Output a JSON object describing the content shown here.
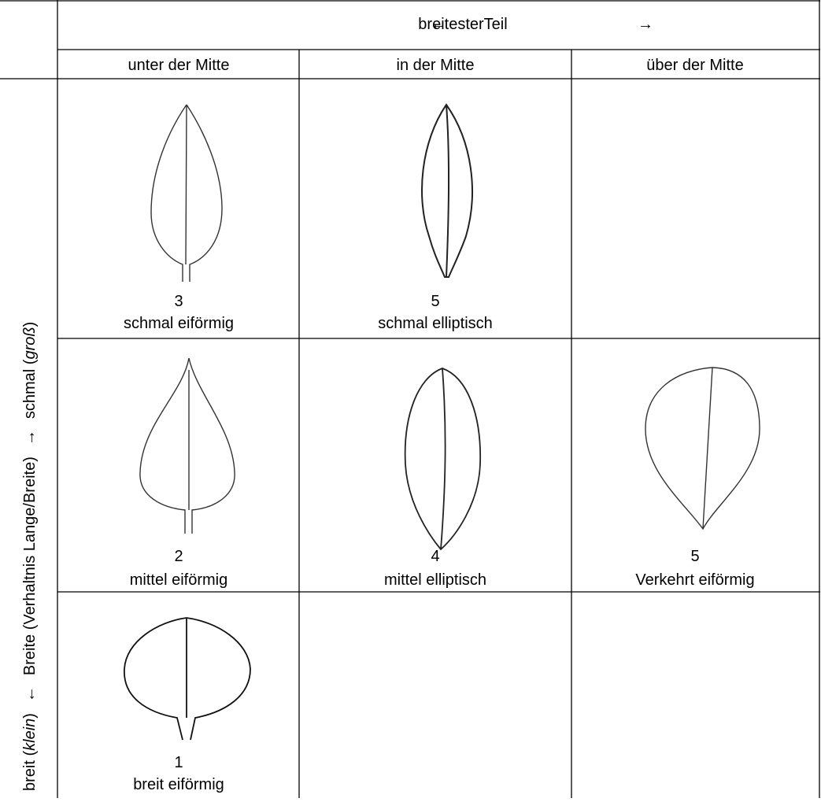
{
  "header": {
    "arrow_left": "←",
    "title": "breitesterTeil",
    "arrow_right": "→",
    "columns": [
      "unter der Mitte",
      "in der Mitte",
      "über der Mitte"
    ]
  },
  "side_label": [
    {
      "text": "breit ("
    },
    {
      "text": "klein",
      "italic": true
    },
    {
      "text": ")"
    },
    {
      "text": "←"
    },
    {
      "text": "Breite (Verhaltnis Lange/Breite)"
    },
    {
      "text": "→"
    },
    {
      "text": "schmal ("
    },
    {
      "text": "groß",
      "italic": true
    },
    {
      "text": ")"
    }
  ],
  "rows": [
    [
      {
        "number": 3,
        "label": "schmal eiförmig"
      },
      {
        "number": 5,
        "label": "schmal elliptisch"
      },
      null
    ],
    [
      {
        "number": 2,
        "label": "mittel eiförmig"
      },
      {
        "number": 4,
        "label": "mittel elliptisch"
      },
      {
        "number": 5,
        "label": "Verkehrt eiförmig"
      }
    ],
    [
      {
        "number": 1,
        "label": "breit eiförmig"
      },
      null,
      null
    ]
  ]
}
